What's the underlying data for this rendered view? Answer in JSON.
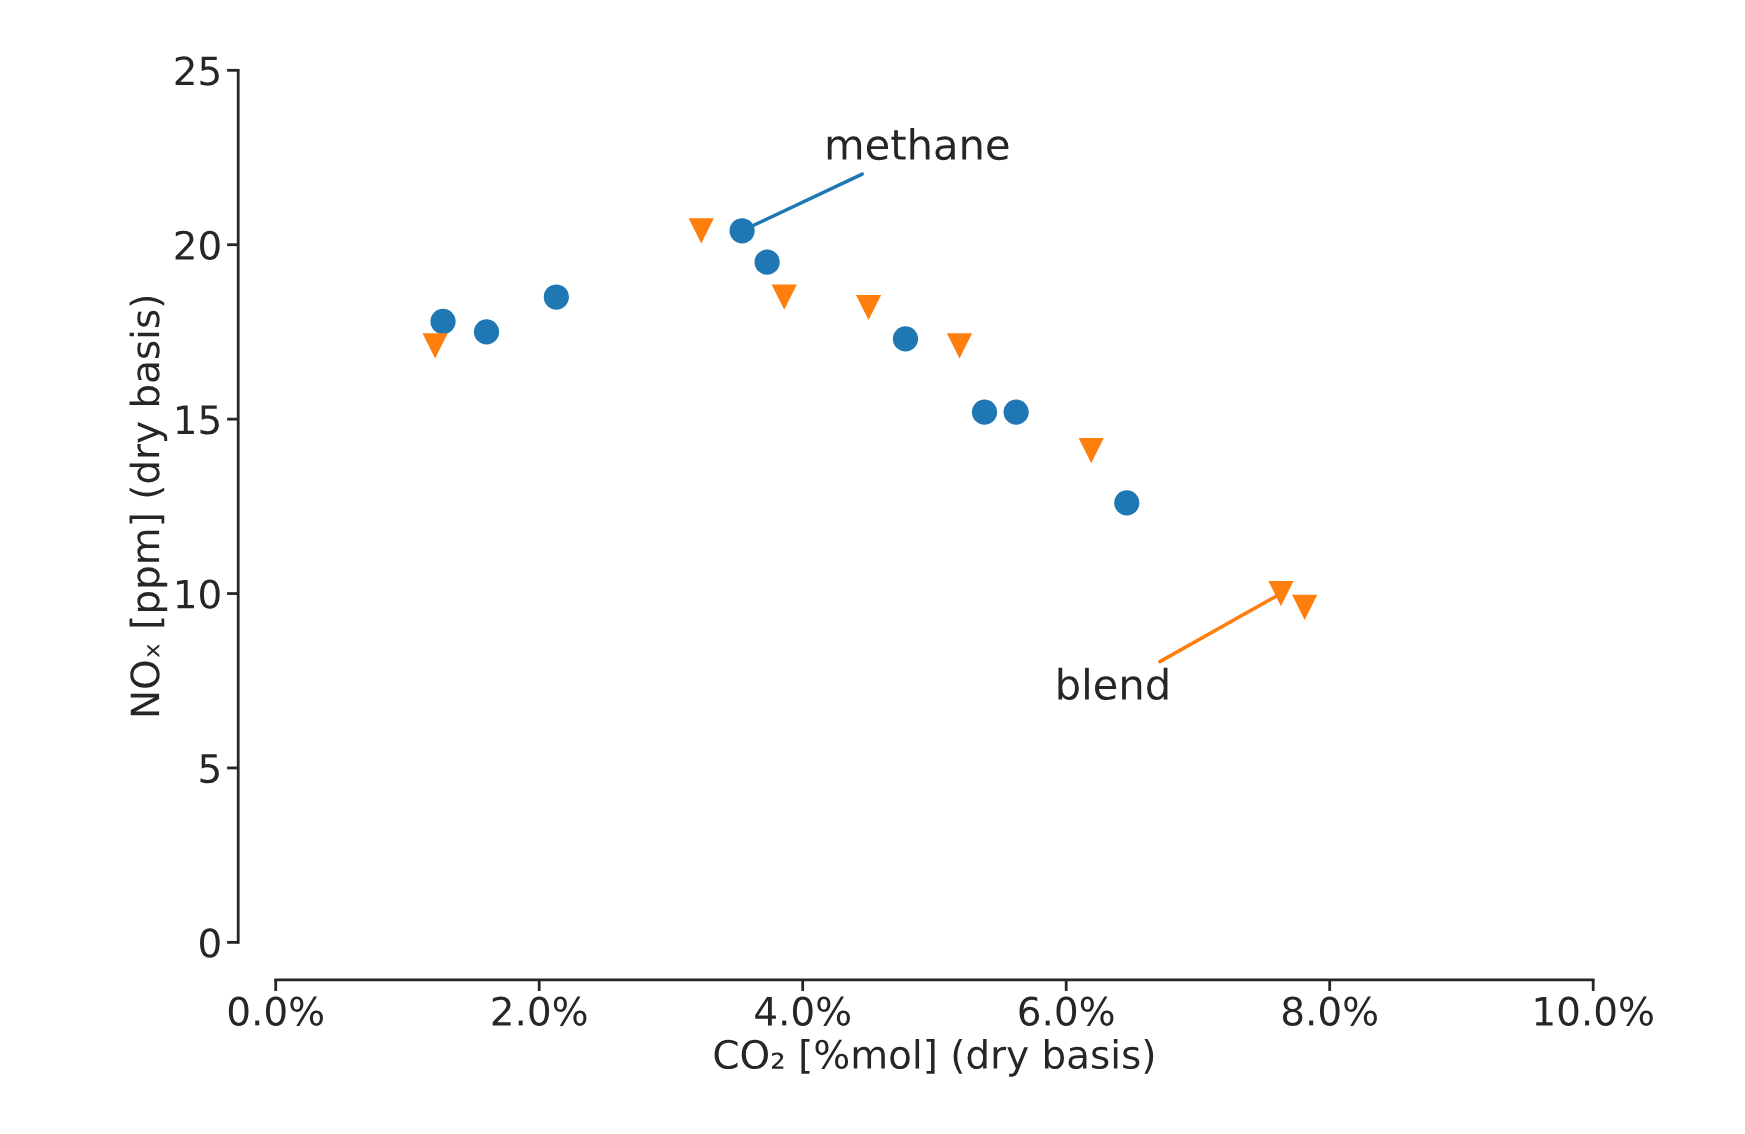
{
  "chart_data": {
    "type": "scatter",
    "xlabel": "CO₂ [%mol] (dry basis)",
    "ylabel": "NOₓ [ppm] (dry basis)",
    "xlim": [
      0,
      10
    ],
    "ylim": [
      0,
      25
    ],
    "xticks": [
      {
        "value": 0,
        "label": "0.0%"
      },
      {
        "value": 2,
        "label": "2.0%"
      },
      {
        "value": 4,
        "label": "4.0%"
      },
      {
        "value": 6,
        "label": "6.0%"
      },
      {
        "value": 8,
        "label": "8.0%"
      },
      {
        "value": 10,
        "label": "10.0%"
      }
    ],
    "yticks": [
      0,
      5,
      10,
      15,
      20,
      25
    ],
    "grid": false,
    "series": [
      {
        "color": "#1f77b4",
        "marker": "circle",
        "x": [
          1.27,
          1.6,
          2.13,
          3.54,
          3.73,
          4.78,
          5.38,
          5.62,
          6.46
        ],
        "values": [
          17.8,
          17.5,
          18.5,
          20.4,
          19.5,
          17.3,
          15.2,
          15.2,
          12.6
        ]
      },
      {
        "color": "#ff7f0e",
        "marker": "triangle",
        "x": [
          1.21,
          3.23,
          3.86,
          4.5,
          5.19,
          6.19,
          7.63,
          7.81
        ],
        "values": [
          17.1,
          20.4,
          18.5,
          18.2,
          17.1,
          14.1,
          10.0,
          9.6
        ]
      }
    ],
    "annotations": [
      {
        "text": "methane",
        "x": 3.54,
        "y": 20.4
      },
      {
        "text": "blend",
        "x": 7.63,
        "y": 10.0
      }
    ]
  }
}
